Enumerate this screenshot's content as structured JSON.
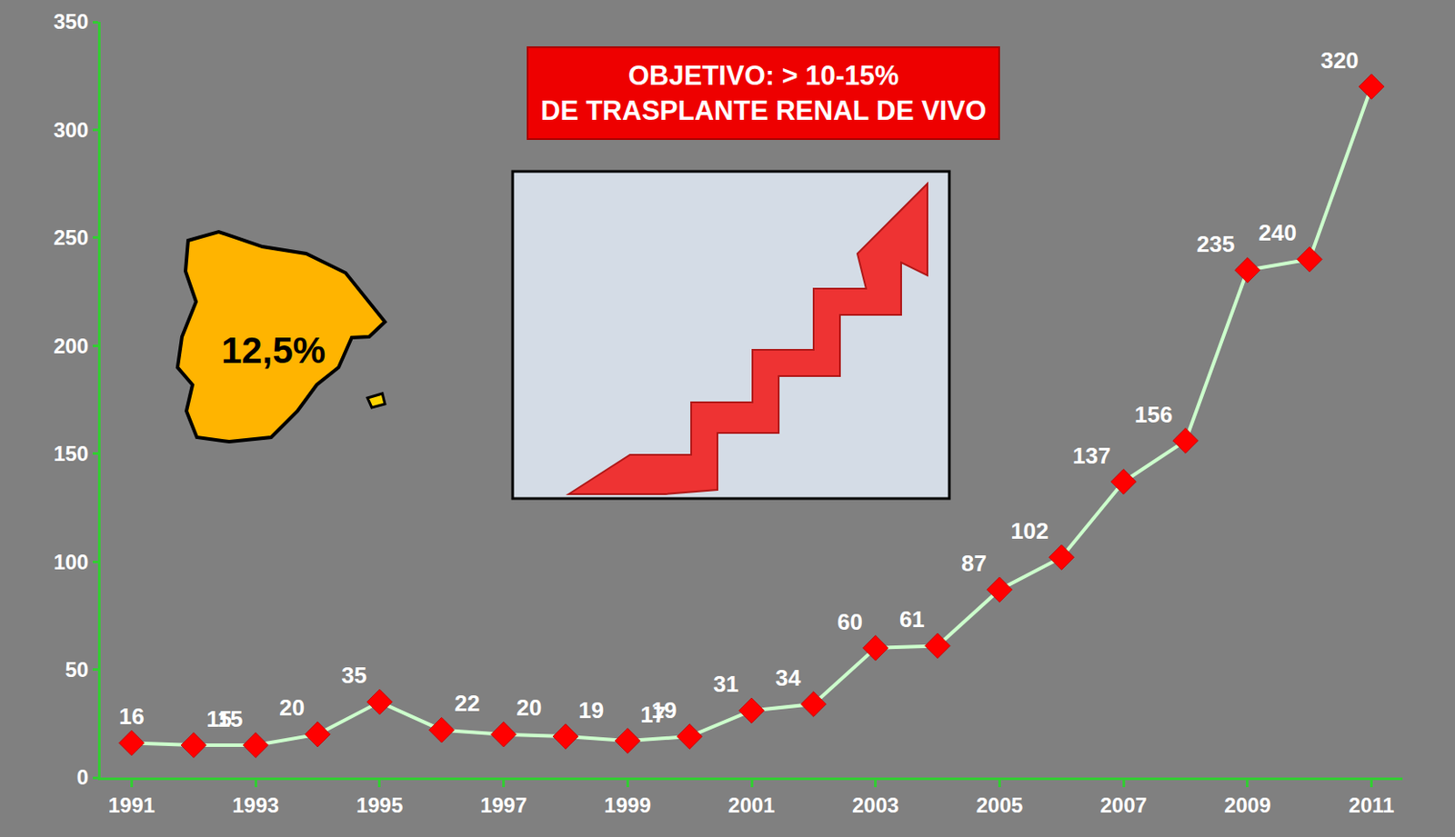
{
  "chart_data": {
    "type": "line",
    "x": [
      1991,
      1992,
      1993,
      1994,
      1995,
      1996,
      1997,
      1998,
      1999,
      2000,
      2001,
      2002,
      2003,
      2004,
      2005,
      2006,
      2007,
      2008,
      2009,
      2010,
      2011
    ],
    "values": [
      16,
      15,
      15,
      20,
      35,
      22,
      20,
      19,
      17,
      19,
      31,
      34,
      60,
      61,
      87,
      102,
      137,
      156,
      235,
      240,
      320
    ],
    "color": "#ccffcc",
    "marker": "diamond",
    "xlim": [
      1990.5,
      2011.5
    ],
    "xticks": [
      1991,
      1993,
      1995,
      1997,
      1999,
      2001,
      2003,
      2005,
      2007,
      2009,
      2011
    ],
    "ylim": [
      0,
      350
    ],
    "yticks": [
      0,
      50,
      100,
      150,
      200,
      250,
      300,
      350
    ],
    "grid": false,
    "data_labels": true,
    "annotations": [
      "OBJETIVO: > 10-15%\nDE TRASPLANTE RENAL DE VIVO",
      "12,5%"
    ]
  }
}
